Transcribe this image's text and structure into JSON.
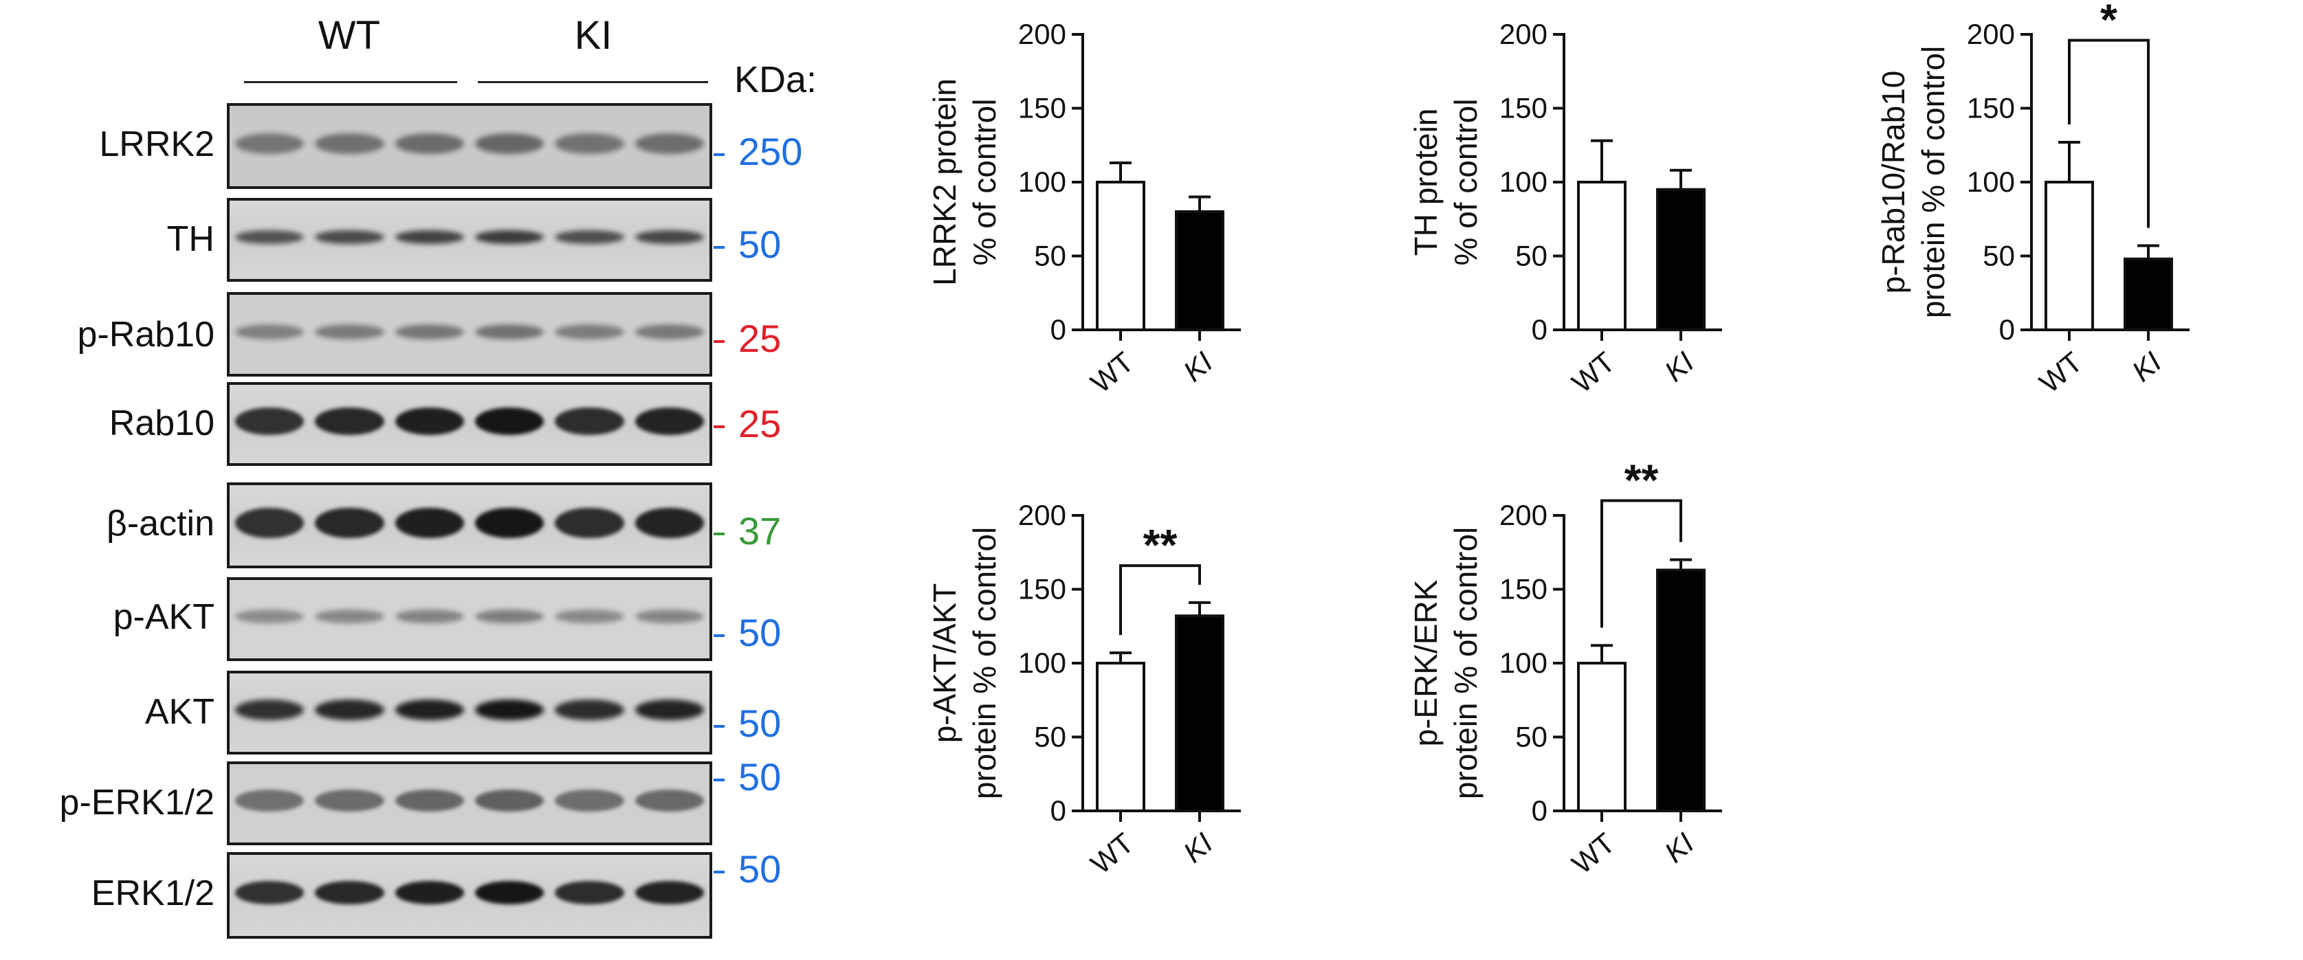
{
  "blot": {
    "groups": [
      {
        "label": "WT"
      },
      {
        "label": "KI"
      }
    ],
    "kda_header": "KDa:",
    "rows": [
      {
        "protein": "LRRK2",
        "marker": "250",
        "marker_color": "#1f6fe0"
      },
      {
        "protein": "TH",
        "marker": "50",
        "marker_color": "#1f6fe0"
      },
      {
        "protein": "p-Rab10",
        "marker": "25",
        "marker_color": "#e0202a"
      },
      {
        "protein": "Rab10",
        "marker": "25",
        "marker_color": "#e0202a"
      },
      {
        "protein": "β-actin",
        "marker": "37",
        "marker_color": "#3a9a3a"
      },
      {
        "protein": "p-AKT",
        "marker": "",
        "marker_color": "#1f6fe0"
      },
      {
        "protein": "AKT",
        "marker": "",
        "marker_color": "#1f6fe0"
      },
      {
        "protein": "p-ERK1/2",
        "marker": "",
        "marker_color": "#1f6fe0"
      },
      {
        "protein": "ERK1/2",
        "marker": "",
        "marker_color": "#1f6fe0"
      }
    ],
    "extra_markers": [
      {
        "value": "50",
        "color": "#1f6fe0"
      },
      {
        "value": "50",
        "color": "#1f6fe0"
      },
      {
        "value": "50",
        "color": "#1f6fe0"
      },
      {
        "value": "50",
        "color": "#1f6fe0"
      }
    ]
  },
  "chart_data": [
    {
      "type": "bar",
      "categories": [
        "WT",
        "KI"
      ],
      "values": [
        100,
        80
      ],
      "errors": [
        13,
        10
      ],
      "fills": [
        "#ffffff",
        "#000000"
      ],
      "ylabel": [
        "LRRK2 protein",
        "% of control"
      ],
      "ylim": [
        0,
        200
      ],
      "yticks": [
        0,
        50,
        100,
        150,
        200
      ],
      "significance": ""
    },
    {
      "type": "bar",
      "categories": [
        "WT",
        "KI"
      ],
      "values": [
        100,
        95
      ],
      "errors": [
        28,
        13
      ],
      "fills": [
        "#ffffff",
        "#000000"
      ],
      "ylabel": [
        "TH protein",
        "% of control"
      ],
      "ylim": [
        0,
        200
      ],
      "yticks": [
        0,
        50,
        100,
        150,
        200
      ],
      "significance": ""
    },
    {
      "type": "bar",
      "categories": [
        "WT",
        "KI"
      ],
      "values": [
        100,
        48
      ],
      "errors": [
        27,
        9
      ],
      "fills": [
        "#ffffff",
        "#000000"
      ],
      "ylabel": [
        "p-Rab10/Rab10",
        "protein % of control"
      ],
      "ylim": [
        0,
        200
      ],
      "yticks": [
        0,
        50,
        100,
        150,
        200
      ],
      "significance": "*"
    },
    {
      "type": "bar",
      "categories": [
        "WT",
        "KI"
      ],
      "values": [
        100,
        132
      ],
      "errors": [
        7,
        9
      ],
      "fills": [
        "#ffffff",
        "#000000"
      ],
      "ylabel": [
        "p-AKT/AKT",
        "protein % of control"
      ],
      "ylim": [
        0,
        200
      ],
      "yticks": [
        0,
        50,
        100,
        150,
        200
      ],
      "significance": "**"
    },
    {
      "type": "bar",
      "categories": [
        "WT",
        "KI"
      ],
      "values": [
        100,
        163
      ],
      "errors": [
        12,
        7
      ],
      "fills": [
        "#ffffff",
        "#000000"
      ],
      "ylabel": [
        "p-ERK/ERK",
        "protein % of control"
      ],
      "ylim": [
        0,
        200
      ],
      "yticks": [
        0,
        50,
        100,
        150,
        200
      ],
      "significance": "**"
    }
  ]
}
